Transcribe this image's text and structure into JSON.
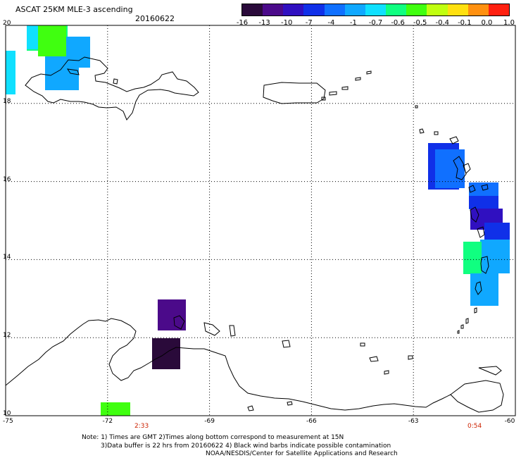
{
  "header": {
    "product": "ASCAT 25KM MLE-3 ascending",
    "date": "20160622"
  },
  "colorbar": {
    "labels": [
      "-16",
      "-13",
      "-10",
      "-7",
      "-4",
      "-1",
      "-0.7",
      "-0.6",
      "-0.5",
      "-0.4",
      "-0.1",
      "0.0",
      "1.0"
    ],
    "colors": [
      "#2a0a3a",
      "#4b0a8a",
      "#3010c0",
      "#1030e8",
      "#1070ff",
      "#10a8ff",
      "#10e0ff",
      "#10ff80",
      "#40ff10",
      "#c0ff10",
      "#ffe010",
      "#ff9010",
      "#ff2010"
    ]
  },
  "map": {
    "lon_labels": [
      "-75",
      "-72",
      "-69",
      "-66",
      "-63",
      "-60"
    ],
    "lat_labels": [
      "20",
      "18",
      "16",
      "14",
      "12",
      "10"
    ],
    "lon_range": [
      -75,
      -60
    ],
    "lat_range": [
      10,
      20
    ],
    "grid": "dotted",
    "pass_times": [
      {
        "lon": -71.0,
        "label": "2:33"
      },
      {
        "lon": -61.2,
        "label": "0:54"
      }
    ]
  },
  "footer": {
    "note_line1": "Note: 1) Times are GMT 2)Times along bottom correspond to measurement at 15N",
    "note_line2": "3)Data buffer is 22 hrs from 20160622 4) Black wind barbs indicate possible contamination",
    "credit": "NOAA/NESDIS/Center for Satellite Applications and Research"
  }
}
